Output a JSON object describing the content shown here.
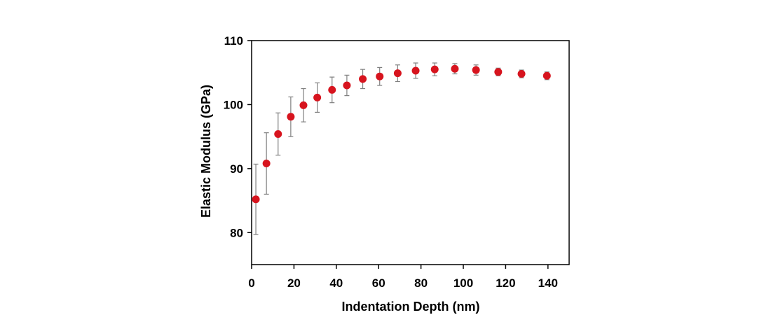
{
  "chart_data": {
    "type": "scatter",
    "title": "",
    "xlabel": "Indentation Depth (nm)",
    "ylabel": "Elastic Modulus (GPa)",
    "xlim": [
      0,
      150
    ],
    "ylim": [
      75,
      110
    ],
    "xticks": [
      0,
      20,
      40,
      60,
      80,
      100,
      120,
      140
    ],
    "yticks": [
      80,
      90,
      100,
      110
    ],
    "grid": false,
    "legend": "none",
    "marker_color": "#d7141e",
    "errorbar_color": "#7f7f7f",
    "series": [
      {
        "x": [
          2,
          7,
          12.5,
          18.5,
          24.5,
          31,
          38,
          45,
          52.5,
          60.5,
          69,
          77.5,
          86.5,
          96,
          106,
          116.5,
          127.5,
          139.5
        ],
        "y": [
          85.2,
          90.8,
          95.4,
          98.1,
          99.9,
          101.1,
          102.3,
          103.0,
          104.0,
          104.4,
          104.9,
          105.3,
          105.5,
          105.6,
          105.4,
          105.1,
          104.8,
          104.5
        ],
        "error": [
          5.5,
          4.8,
          3.3,
          3.1,
          2.6,
          2.3,
          2.0,
          1.6,
          1.5,
          1.4,
          1.3,
          1.2,
          1.0,
          0.8,
          0.8,
          0.6,
          0.6,
          0.6
        ]
      }
    ]
  }
}
